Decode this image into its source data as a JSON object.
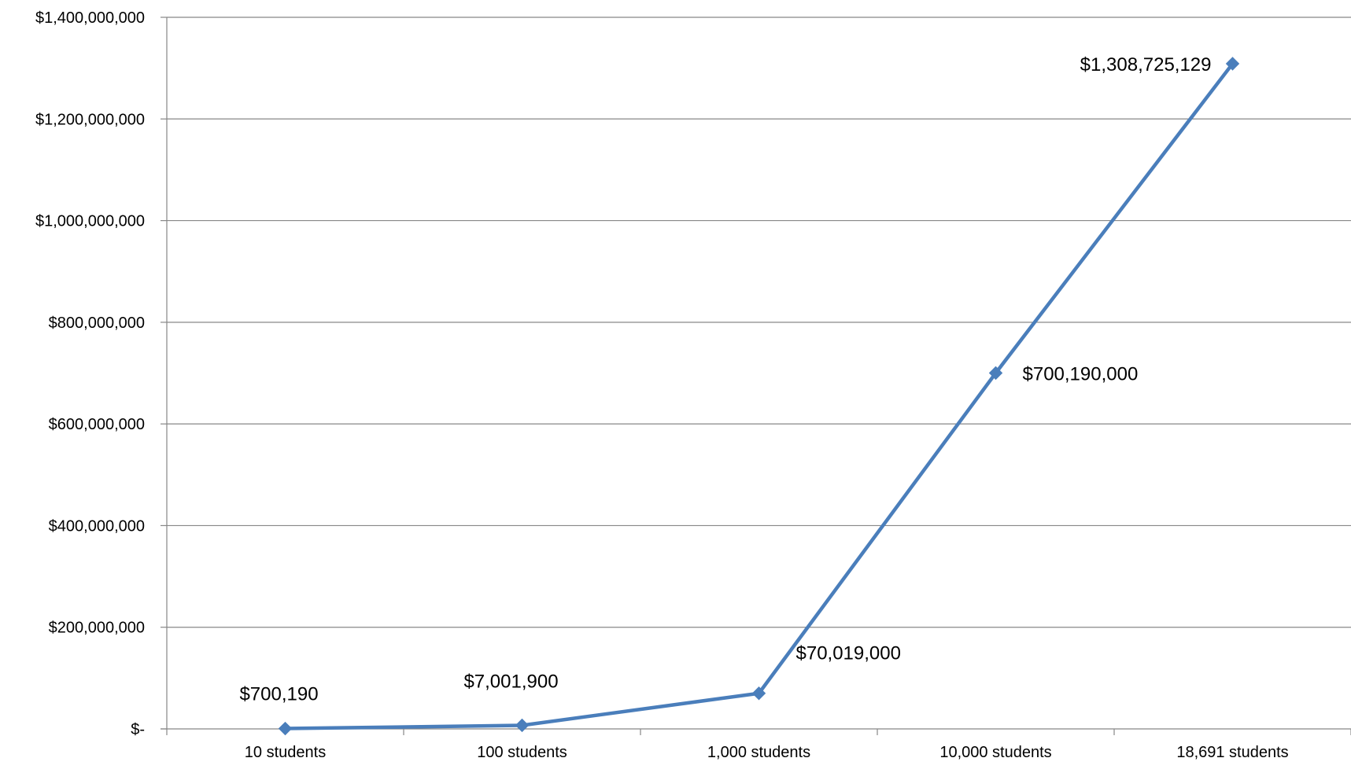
{
  "chart_data": {
    "type": "line",
    "title": "",
    "xlabel": "",
    "ylabel": "",
    "categories": [
      "10 students",
      "100 students",
      "1,000 students",
      "10,000 students",
      "18,691 students"
    ],
    "series": [
      {
        "values": [
          700190,
          7001900,
          70019000,
          700190000,
          1308725129
        ],
        "data_labels": [
          "$700,190",
          "$7,001,900",
          "$70,019,000",
          "$700,190,000",
          "$1,308,725,129"
        ],
        "color": "#4a7ebb",
        "marker": "diamond"
      }
    ],
    "ylim": [
      0,
      1400000000
    ],
    "y_ticks": [
      0,
      200000000,
      400000000,
      600000000,
      800000000,
      1000000000,
      1200000000,
      1400000000
    ],
    "y_tick_labels": [
      "$-",
      "$200,000,000",
      "$400,000,000",
      "$600,000,000",
      "$800,000,000",
      "$1,000,000,000",
      "$1,200,000,000",
      "$1,400,000,000"
    ],
    "grid": true,
    "legend": "none"
  }
}
